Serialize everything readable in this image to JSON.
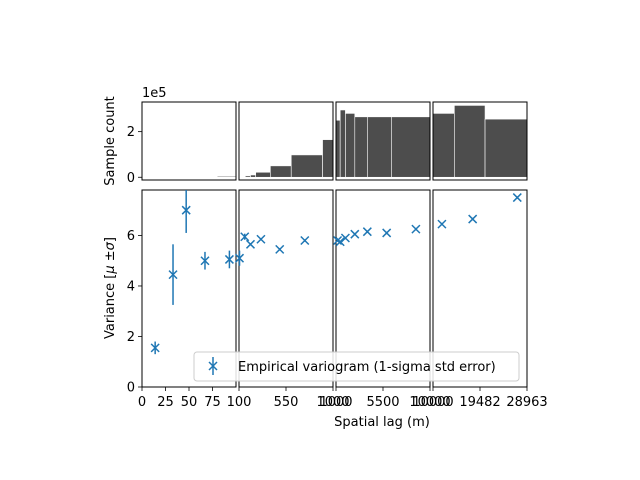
{
  "chart_data": {
    "type": "scatter",
    "xlabel": "Spatial lag (m)",
    "top_ylabel": "Sample count",
    "top_scale_label": "1e5",
    "ylabel": "Variance [$\\mu$ $\\pm \\sigma$]",
    "ylabel_parts": {
      "prefix": "Variance [",
      "mu": "μ",
      "pm": " ±",
      "sigma": "σ",
      "suffix": "]"
    },
    "legend": "Empirical variogram (1-sigma std error)",
    "legend_placement": "lower-right",
    "colors": {
      "series": "#1f77b4",
      "bars": "#4d4d4d"
    },
    "ylim": [
      0,
      7.8
    ],
    "yticks": [
      "0",
      "2",
      "4",
      "6"
    ],
    "top_ylim": [
      -0.12,
      3.3
    ],
    "top_yticks": [
      "0",
      "2"
    ],
    "panels": [
      {
        "xlim": [
          0,
          100
        ],
        "xticks": [
          "0",
          "25",
          "50",
          "75"
        ],
        "points": [
          {
            "x": 14,
            "y": 1.55,
            "err": 0.25
          },
          {
            "x": 33,
            "y": 4.45,
            "err": 1.2
          },
          {
            "x": 47,
            "y": 7.0,
            "err": 0.9
          },
          {
            "x": 67,
            "y": 5.0,
            "err": 0.35
          },
          {
            "x": 93,
            "y": 5.05,
            "err": 0.35
          }
        ],
        "bars": [
          {
            "x0": 80,
            "x1": 100,
            "value": 0.04
          }
        ]
      },
      {
        "xlim": [
          100,
          1000
        ],
        "xticks": [
          "100",
          "550",
          "1000"
        ],
        "points": [
          {
            "x": 105,
            "y": 5.1,
            "err": 0.3
          },
          {
            "x": 155,
            "y": 5.95,
            "err": 0.12
          },
          {
            "x": 210,
            "y": 5.65,
            "err": 0.05
          },
          {
            "x": 310,
            "y": 5.85,
            "err": 0.05
          },
          {
            "x": 490,
            "y": 5.45,
            "err": 0.05
          },
          {
            "x": 730,
            "y": 5.8,
            "err": 0.05
          }
        ],
        "bars": [
          {
            "x0": 100,
            "x1": 160,
            "value": 0.02
          },
          {
            "x0": 160,
            "x1": 210,
            "value": 0.06
          },
          {
            "x0": 210,
            "x1": 260,
            "value": 0.1
          },
          {
            "x0": 260,
            "x1": 400,
            "value": 0.22
          },
          {
            "x0": 400,
            "x1": 600,
            "value": 0.5
          },
          {
            "x0": 600,
            "x1": 900,
            "value": 0.98
          },
          {
            "x0": 900,
            "x1": 1000,
            "value": 1.65
          }
        ]
      },
      {
        "xlim": [
          1000,
          10000
        ],
        "xticks": [
          "1000",
          "5500",
          "10000"
        ],
        "points": [
          {
            "x": 1150,
            "y": 5.8,
            "err": 0.05
          },
          {
            "x": 1400,
            "y": 5.75,
            "err": 0.05
          },
          {
            "x": 1900,
            "y": 5.9,
            "err": 0.05
          },
          {
            "x": 2800,
            "y": 6.05,
            "err": 0.05
          },
          {
            "x": 4000,
            "y": 6.15,
            "err": 0.05
          },
          {
            "x": 5850,
            "y": 6.1,
            "err": 0.05
          },
          {
            "x": 8650,
            "y": 6.25,
            "err": 0.05
          }
        ],
        "bars": [
          {
            "x0": 1000,
            "x1": 1400,
            "value": 2.5
          },
          {
            "x0": 1400,
            "x1": 1900,
            "value": 2.95
          },
          {
            "x0": 1900,
            "x1": 2800,
            "value": 2.8
          },
          {
            "x0": 2800,
            "x1": 4000,
            "value": 2.65
          },
          {
            "x0": 4000,
            "x1": 6300,
            "value": 2.65
          },
          {
            "x0": 6300,
            "x1": 10000,
            "value": 2.65
          }
        ]
      },
      {
        "xlim": [
          10000,
          28963
        ],
        "xticks": [
          "10000",
          "19482",
          "28963"
        ],
        "points": [
          {
            "x": 11800,
            "y": 6.45,
            "err": 0.05
          },
          {
            "x": 18000,
            "y": 6.65,
            "err": 0.05
          },
          {
            "x": 27000,
            "y": 7.5,
            "err": 0.05
          }
        ],
        "bars": [
          {
            "x0": 10000,
            "x1": 14300,
            "value": 2.8
          },
          {
            "x0": 14300,
            "x1": 20500,
            "value": 3.15
          },
          {
            "x0": 20500,
            "x1": 28963,
            "value": 2.55
          }
        ]
      }
    ]
  }
}
